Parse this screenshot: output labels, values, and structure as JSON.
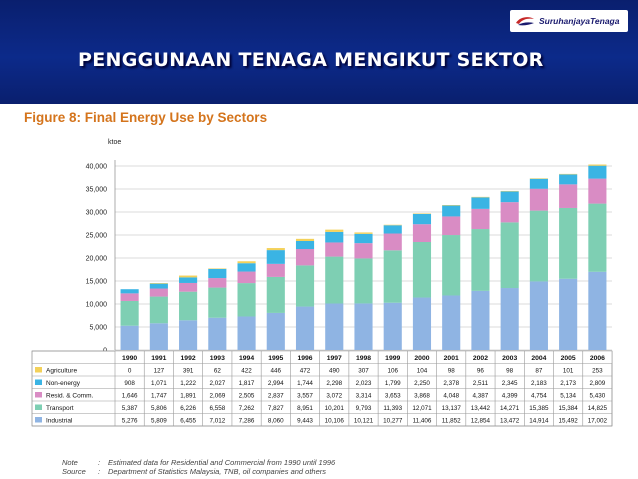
{
  "slide": {
    "title": "PENGGUNAAN TENAGA MENGIKUT SEKTOR"
  },
  "logo": {
    "text": "SuruhanjayaTenaga",
    "icon": "swoosh-logo-icon",
    "color": "#c62828"
  },
  "figure": {
    "title": "Figure 8: Final Energy Use by Sectors"
  },
  "chart_data": {
    "type": "bar",
    "stacked": true,
    "unit": "ktoe",
    "ylim": [
      0,
      40000
    ],
    "yticks": [
      0,
      5000,
      10000,
      15000,
      20000,
      25000,
      30000,
      35000,
      40000
    ],
    "ytick_labels": [
      "0",
      "5,000",
      "10,000",
      "15,000",
      "20,000",
      "25,000",
      "30,000",
      "35,000",
      "40,000"
    ],
    "grid": true,
    "categories": [
      "1990",
      "1991",
      "1992",
      "1993",
      "1994",
      "1995",
      "1996",
      "1997",
      "1998",
      "1999",
      "2000",
      "2001",
      "2002",
      "2003",
      "2004",
      "2005",
      "2006"
    ],
    "series": [
      {
        "name": "Agriculture",
        "color": "#f3d15a",
        "values": [
          0,
          127,
          391,
          62,
          422,
          446,
          472,
          490,
          307,
          106,
          104,
          98,
          96,
          98,
          87,
          101,
          253
        ],
        "labels": [
          "0",
          "127",
          "391",
          "62",
          "422",
          "446",
          "472",
          "490",
          "307",
          "106",
          "104",
          "98",
          "96",
          "98",
          "87",
          "101",
          "253"
        ]
      },
      {
        "name": "Non-energy",
        "color": "#3ab4e4",
        "values": [
          908,
          1071,
          1222,
          2027,
          1817,
          2994,
          1744,
          2298,
          2023,
          1799,
          2250,
          2378,
          2511,
          2345,
          2183,
          2173,
          2809
        ],
        "labels": [
          "908",
          "1,071",
          "1,222",
          "2,027",
          "1,817",
          "2,994",
          "1,744",
          "2,298",
          "2,023",
          "1,799",
          "2,250",
          "2,378",
          "2,511",
          "2,345",
          "2,183",
          "2,173",
          "2,809"
        ]
      },
      {
        "name": "Resid. & Comm.",
        "color": "#d98cc4",
        "values": [
          1646,
          1747,
          1891,
          2069,
          2505,
          2837,
          3557,
          3072,
          3314,
          3653,
          3868,
          4048,
          4387,
          4399,
          4754,
          5134,
          5430
        ],
        "labels": [
          "1,646",
          "1,747",
          "1,891",
          "2,069",
          "2,505",
          "2,837",
          "3,557",
          "3,072",
          "3,314",
          "3,653",
          "3,868",
          "4,048",
          "4,387",
          "4,399",
          "4,754",
          "5,134",
          "5,430"
        ]
      },
      {
        "name": "Transport",
        "color": "#7ecfb3",
        "values": [
          5387,
          5806,
          6226,
          6558,
          7262,
          7827,
          8951,
          10201,
          9793,
          11393,
          12071,
          13137,
          13442,
          14271,
          15385,
          15384,
          14825
        ],
        "labels": [
          "5,387",
          "5,806",
          "6,226",
          "6,558",
          "7,262",
          "7,827",
          "8,951",
          "10,201",
          "9,793",
          "11,393",
          "12,071",
          "13,137",
          "13,442",
          "14,271",
          "15,385",
          "15,384",
          "14,825"
        ]
      },
      {
        "name": "Industrial",
        "color": "#8fb4e3",
        "values": [
          5276,
          5809,
          6455,
          7012,
          7286,
          8060,
          9443,
          10106,
          10121,
          10277,
          11406,
          11852,
          12854,
          13472,
          14914,
          15492,
          17002
        ],
        "labels": [
          "5,276",
          "5,809",
          "6,455",
          "7,012",
          "7,286",
          "8,060",
          "9,443",
          "10,106",
          "10,121",
          "10,277",
          "11,406",
          "11,852",
          "12,854",
          "13,472",
          "14,914",
          "15,492",
          "17,002"
        ]
      }
    ]
  },
  "notes": [
    {
      "key": "Note",
      "text": "Estimated data for Residential and Commercial from 1990 until 1996"
    },
    {
      "key": "Source",
      "text": "Department of Statistics Malaysia, TNB, oil companies and others"
    }
  ]
}
